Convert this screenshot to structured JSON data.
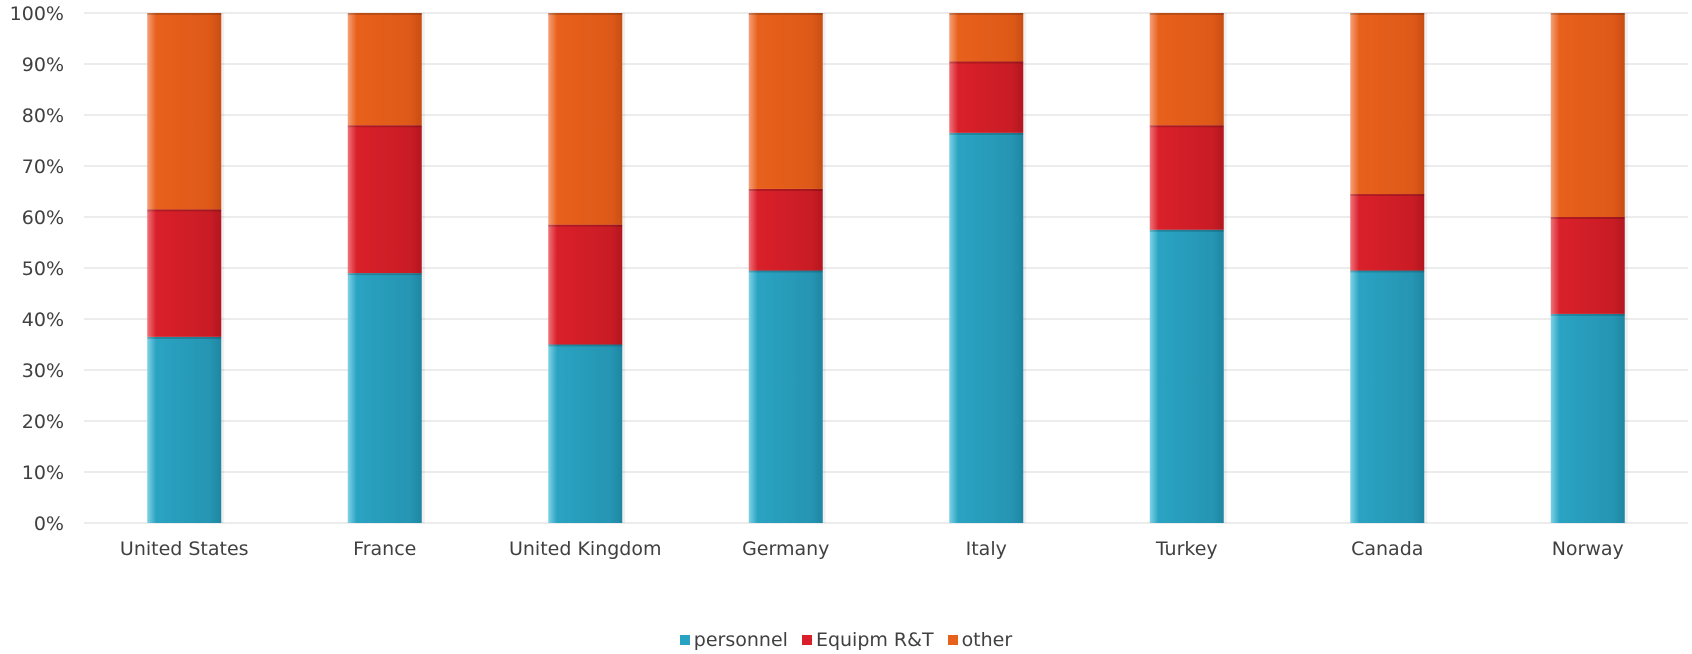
{
  "colors": {
    "personnel": "#2aa3c2",
    "equipm": "#d9202a",
    "other": "#e8611c",
    "grid": "#d9d9d9",
    "axis_text": "#404040"
  },
  "chart_data": {
    "type": "bar",
    "stacked": "percent",
    "title": "",
    "xlabel": "",
    "ylabel": "",
    "ylim": [
      0,
      100
    ],
    "y_ticks": [
      "0%",
      "10%",
      "20%",
      "30%",
      "40%",
      "50%",
      "60%",
      "70%",
      "80%",
      "90%",
      "100%"
    ],
    "categories": [
      "United States",
      "France",
      "United Kingdom",
      "Germany",
      "Italy",
      "Turkey",
      "Canada",
      "Norway"
    ],
    "series": [
      {
        "name": "personnel",
        "color_key": "personnel",
        "values": [
          36.5,
          49,
          35,
          49.5,
          76.5,
          57.5,
          49.5,
          41
        ]
      },
      {
        "name": "Equipm R&T",
        "color_key": "equipm",
        "values": [
          25,
          29,
          23.5,
          16,
          14,
          20.5,
          15,
          19
        ]
      },
      {
        "name": "other",
        "color_key": "other",
        "values": [
          38.5,
          22,
          41.5,
          34.5,
          9.5,
          22,
          35.5,
          40
        ]
      }
    ],
    "grid": true,
    "legend_position": "bottom"
  }
}
